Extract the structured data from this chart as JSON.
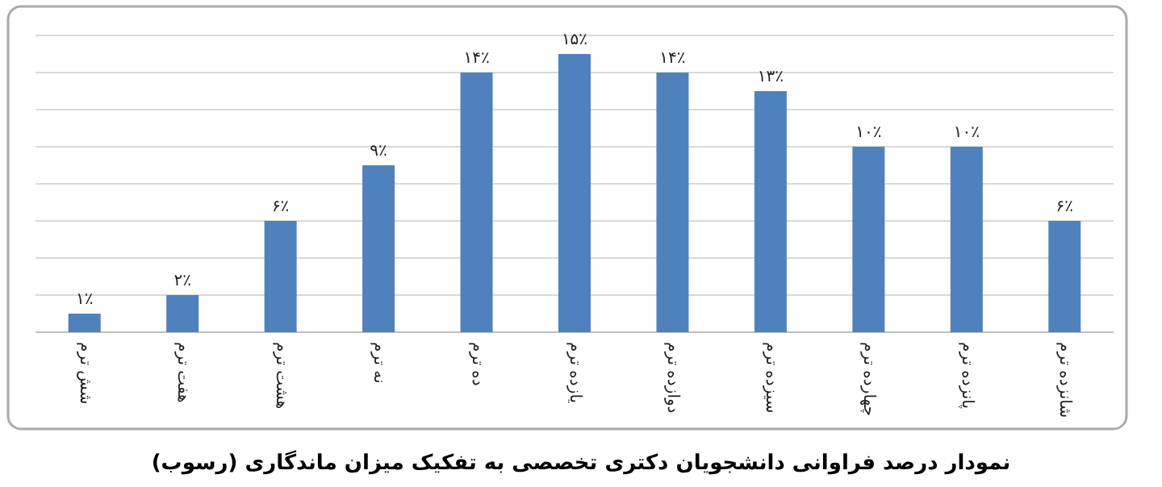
{
  "chart_data": {
    "type": "bar",
    "title": "نمودار درصد فراوانی دانشجویان دکتری تخصصی به تفکیک میزان ماندگاری (رسوب)",
    "categories": [
      "شش ترم",
      "هفت ترم",
      "هشت ترم",
      "نه ترم",
      "ده ترم",
      "یازده ترم",
      "دوازده ترم",
      "سیزده ترم",
      "چهارده ترم",
      "پانزده ترم",
      "شانزده ترم"
    ],
    "values": [
      1,
      2,
      6,
      9,
      14,
      15,
      14,
      13,
      10,
      10,
      6
    ],
    "value_labels": [
      "۱٪",
      "۲٪",
      "۶٪",
      "۹٪",
      "۱۴٪",
      "۱۵٪",
      "۱۴٪",
      "۱۳٪",
      "۱۰٪",
      "۱۰٪",
      "۶٪"
    ],
    "color": "#4f81bd",
    "ylim": [
      0,
      16
    ],
    "yticks": [
      {
        "value": 0,
        "label": null
      },
      {
        "value": 2,
        "label": null
      },
      {
        "value": 4,
        "label": null
      },
      {
        "value": 6,
        "label": null
      },
      {
        "value": 8,
        "label": null
      },
      {
        "value": 10,
        "label": null
      },
      {
        "value": 12,
        "label": null
      },
      {
        "value": 14,
        "label": null
      },
      {
        "value": 16,
        "label": null
      }
    ],
    "grid": "y",
    "tick_labels": "x"
  }
}
